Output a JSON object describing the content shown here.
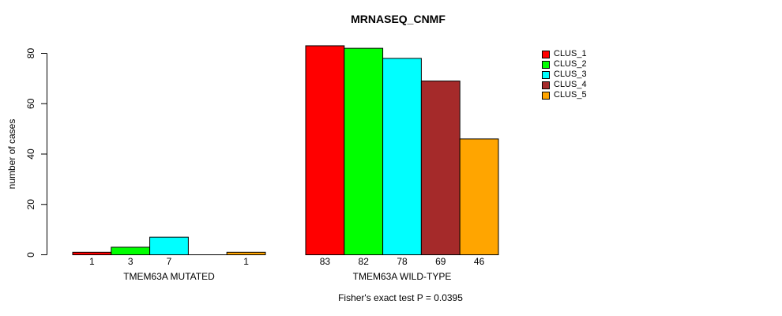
{
  "chart_data": {
    "type": "bar",
    "title": "MRNASEQ_CNMF",
    "ylabel": "number of cases",
    "ylim": [
      0,
      80
    ],
    "yticks": [
      0,
      20,
      40,
      60,
      80
    ],
    "categories": [
      "TMEM63A MUTATED",
      "TMEM63A WILD-TYPE"
    ],
    "series": [
      {
        "name": "CLUS_1",
        "color": "#FF0000",
        "values": [
          1,
          83
        ]
      },
      {
        "name": "CLUS_2",
        "color": "#00FF00",
        "values": [
          3,
          82
        ]
      },
      {
        "name": "CLUS_3",
        "color": "#00FFFF",
        "values": [
          7,
          78
        ]
      },
      {
        "name": "CLUS_4",
        "color": "#A52A2A",
        "values": [
          0,
          69
        ]
      },
      {
        "name": "CLUS_5",
        "color": "#FFA500",
        "values": [
          1,
          46
        ]
      }
    ],
    "bar_value_labels": {
      "TMEM63A MUTATED": [
        "1",
        "3",
        "7",
        "",
        "1"
      ],
      "TMEM63A WILD-TYPE": [
        "83",
        "82",
        "78",
        "69",
        "46"
      ]
    },
    "annotation": "Fisher's exact test P = 0.0395",
    "legend_position": "top-right",
    "grid": false,
    "axis_color": "#000000",
    "text_color": "#000000",
    "background": "#FFFFFF"
  }
}
